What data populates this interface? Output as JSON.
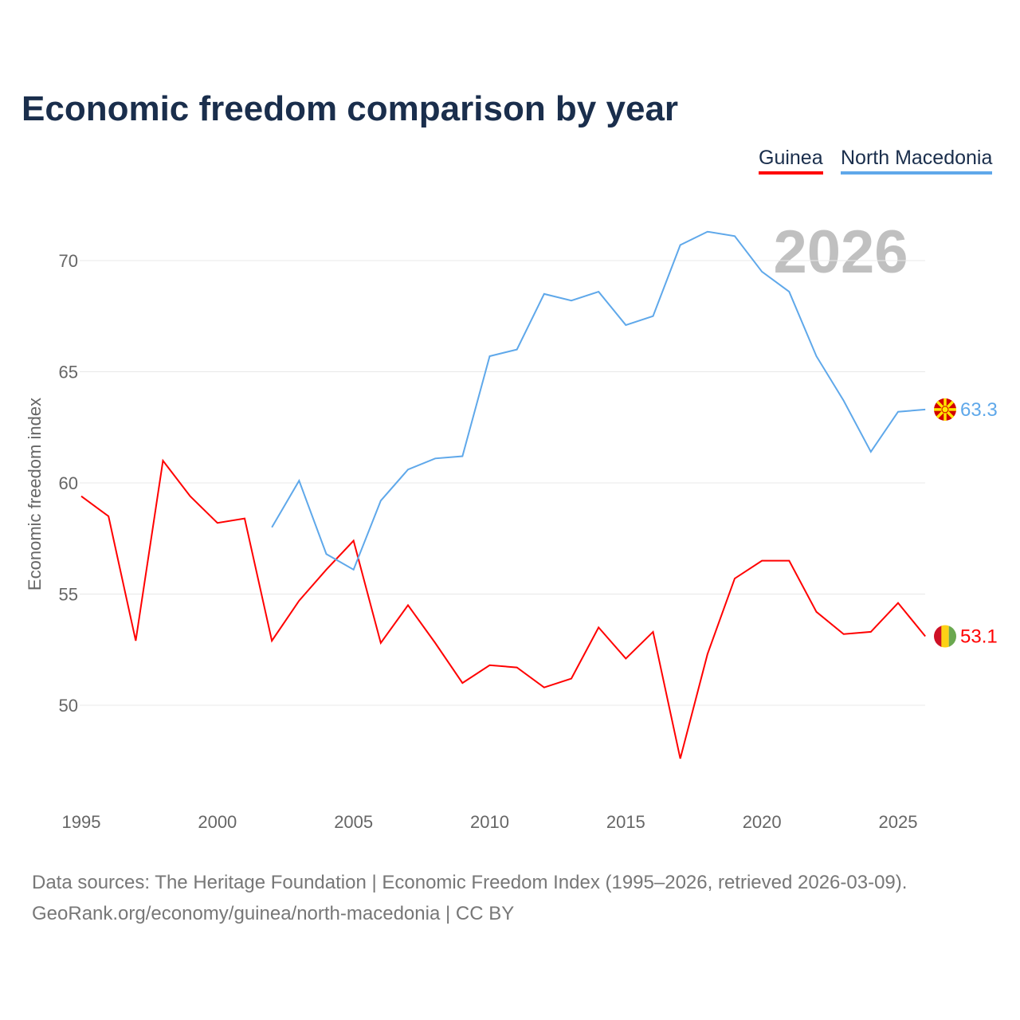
{
  "title": "Economic freedom comparison by year",
  "year_label": "2026",
  "source_line1": "Data sources: The Heritage Foundation | Economic Freedom Index (1995–2026, retrieved 2026-03-09).",
  "source_line2": "GeoRank.org/economy/guinea/north-macedonia | CC BY",
  "chart_data": {
    "type": "line",
    "title": "Economic freedom comparison by year",
    "xlabel": "",
    "ylabel": "Economic freedom index",
    "xlim": [
      1995,
      2026
    ],
    "ylim": [
      46,
      73
    ],
    "xticks": [
      1995,
      2000,
      2005,
      2010,
      2015,
      2020,
      2025
    ],
    "yticks": [
      50,
      55,
      60,
      65,
      70
    ],
    "grid": true,
    "legend": "top-right",
    "series": [
      {
        "name": "Guinea",
        "color": "#ff0000",
        "end_label": "53.1",
        "x_start": 1995,
        "values": [
          59.4,
          58.5,
          52.9,
          61.0,
          59.4,
          58.2,
          58.4,
          52.9,
          54.7,
          56.1,
          57.4,
          52.8,
          54.5,
          52.8,
          51.0,
          51.8,
          51.7,
          50.8,
          51.2,
          53.5,
          52.1,
          53.3,
          47.6,
          52.3,
          55.7,
          56.5,
          56.5,
          54.2,
          53.2,
          53.3,
          54.6,
          53.1
        ]
      },
      {
        "name": "North Macedonia",
        "color": "#5fa8ea",
        "end_label": "63.3",
        "x_start": 2002,
        "values": [
          58.0,
          60.1,
          56.8,
          56.1,
          59.2,
          60.6,
          61.1,
          61.2,
          65.7,
          66.0,
          68.5,
          68.2,
          68.6,
          67.1,
          67.5,
          70.7,
          71.3,
          71.1,
          69.5,
          68.6,
          65.7,
          63.7,
          61.4,
          63.2,
          63.3
        ]
      }
    ]
  }
}
